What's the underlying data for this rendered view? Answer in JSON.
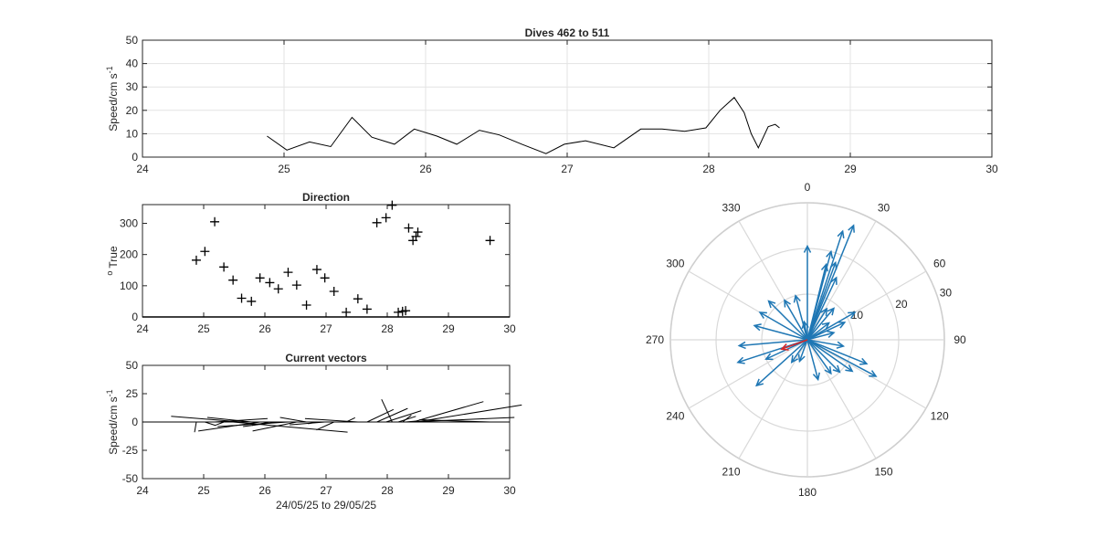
{
  "chart_data": [
    {
      "type": "line",
      "title": "Dives 462 to 511",
      "xlabel": "",
      "ylabel": "Speed/cm s",
      "ylabel_sup": "-1",
      "xlim": [
        24,
        30
      ],
      "ylim": [
        0,
        50
      ],
      "xticks": [
        24,
        25,
        26,
        27,
        28,
        29,
        30
      ],
      "yticks": [
        0,
        10,
        20,
        30,
        40,
        50
      ],
      "grid": true,
      "series": [
        {
          "color": "#000000",
          "x": [
            24.88,
            25.02,
            25.18,
            25.33,
            25.48,
            25.62,
            25.78,
            25.92,
            26.08,
            26.22,
            26.38,
            26.52,
            26.68,
            26.85,
            26.98,
            27.13,
            27.33,
            27.52,
            27.67,
            27.83,
            27.98,
            28.08,
            28.18,
            28.25,
            28.3,
            28.35,
            28.42,
            28.47,
            28.5
          ],
          "y": [
            9,
            3,
            6.5,
            4.5,
            17,
            8.5,
            5.5,
            12,
            9,
            5.5,
            11.5,
            9.5,
            5.5,
            1.5,
            5.5,
            7,
            4,
            12,
            12,
            11,
            12.5,
            20,
            25.5,
            19,
            10,
            4,
            13,
            14,
            12.5
          ]
        }
      ]
    },
    {
      "type": "scatter",
      "title": "Direction",
      "xlabel": "",
      "ylabel": "True",
      "ylabel_sup": "o",
      "xlim": [
        24,
        30
      ],
      "ylim": [
        0,
        360
      ],
      "xticks": [
        24,
        25,
        26,
        27,
        28,
        29,
        30
      ],
      "yticks": [
        0,
        100,
        200,
        300
      ],
      "grid": false,
      "marker": "+",
      "series": [
        {
          "color": "#000000",
          "x": [
            24.88,
            25.02,
            25.18,
            25.33,
            25.48,
            25.62,
            25.78,
            25.92,
            26.08,
            26.22,
            26.38,
            26.52,
            26.68,
            26.85,
            26.98,
            27.13,
            27.33,
            27.52,
            27.67,
            27.83,
            27.98,
            28.08,
            28.18,
            28.25,
            28.3,
            28.35,
            28.42,
            28.47,
            28.5,
            29.68
          ],
          "y": [
            182,
            210,
            305,
            160,
            118,
            60,
            50,
            125,
            110,
            90,
            143,
            102,
            38,
            152,
            125,
            82,
            15,
            58,
            25,
            302,
            318,
            358,
            15,
            18,
            20,
            285,
            245,
            258,
            272,
            245
          ]
        }
      ]
    },
    {
      "type": "quiver",
      "title": "Current vectors",
      "xlabel": "24/05/25 to 29/05/25",
      "ylabel": "Speed/cm s",
      "ylabel_sup": "-1",
      "xlim": [
        24,
        30
      ],
      "ylim": [
        -50,
        50
      ],
      "xticks": [
        24,
        25,
        26,
        27,
        28,
        29,
        30
      ],
      "yticks": [
        -50,
        -25,
        0,
        25,
        50
      ],
      "grid": false,
      "series": [
        {
          "color": "#000000",
          "x": [
            24.88,
            25.02,
            25.18,
            25.33,
            25.48,
            25.62,
            25.78,
            25.92,
            26.08,
            26.22,
            26.38,
            26.52,
            26.68,
            26.85,
            26.98,
            27.13,
            27.33,
            27.52,
            27.67,
            27.83,
            27.98,
            28.08,
            28.18,
            28.25,
            28.3,
            28.35,
            28.42,
            28.47,
            29.68
          ],
          "u": [
            -0.2,
            1.2,
            6,
            -1,
            13,
            -8,
            -5,
            -7,
            -2,
            -4,
            -8,
            -5,
            -3,
            -1,
            -4,
            -2,
            1,
            -6,
            3,
            3.5,
            4,
            -1.2,
            2,
            1,
            1.5,
            12,
            8,
            12,
            -8
          ],
          "v": [
            -9,
            -3,
            3,
            -3,
            -9,
            5,
            4,
            -8,
            -3,
            -4,
            -4,
            -8,
            4,
            -1.5,
            -2.5,
            -7,
            3.8,
            3,
            11,
            12,
            10,
            20,
            5,
            6,
            1,
            4,
            18,
            15,
            2
          ]
        }
      ]
    },
    {
      "type": "polar_compass",
      "theta_zero": "top",
      "theta_direction": "clockwise",
      "angle_ticks": [
        "0",
        "30",
        "60",
        "90",
        "120",
        "150",
        "180",
        "210",
        "240",
        "270",
        "300",
        "330"
      ],
      "radial_ticks": [
        "10",
        "20",
        "30"
      ],
      "rmax": 30,
      "series": [
        {
          "color": "#1f77b4",
          "vectors_deg_speed": [
            [
              0,
              20.5
            ],
            [
              18,
              25
            ],
            [
              22,
              27
            ],
            [
              15,
              20
            ],
            [
              20,
              18
            ],
            [
              14,
              17
            ],
            [
              25,
              15
            ],
            [
              32,
              8
            ],
            [
              40,
              9
            ],
            [
              52,
              6
            ],
            [
              65,
              9
            ],
            [
              75,
              6
            ],
            [
              60,
              12
            ],
            [
              100,
              8
            ],
            [
              112,
              14
            ],
            [
              118,
              17
            ],
            [
              125,
              12
            ],
            [
              135,
              10
            ],
            [
              145,
              9
            ],
            [
              165,
              9
            ],
            [
              200,
              5
            ],
            [
              215,
              6
            ],
            [
              228,
              15
            ],
            [
              245,
              10
            ],
            [
              252,
              16
            ],
            [
              265,
              15
            ],
            [
              285,
              12
            ],
            [
              300,
              12
            ],
            [
              315,
              12
            ],
            [
              330,
              10
            ],
            [
              345,
              10
            ],
            [
              350,
              4
            ]
          ]
        },
        {
          "color": "#d62728",
          "vectors_deg_speed": [
            [
              250,
              6
            ]
          ]
        }
      ]
    }
  ]
}
